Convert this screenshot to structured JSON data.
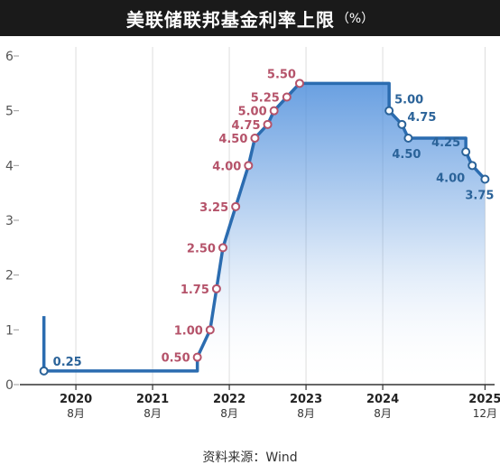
{
  "title": "美联储联邦基金利率上限",
  "title_unit": "（%）",
  "source": "资料来源：Wind",
  "colors": {
    "line": "#2b6cb0",
    "hike": "#b5536a",
    "cut": "#2b6399",
    "fill_top": "#4f8fdc"
  },
  "chart_data": {
    "type": "area",
    "title": "美联储联邦基金利率上限",
    "ylabel": "%",
    "ylim": [
      0,
      6
    ],
    "y_ticks": [
      "0",
      "1",
      "2",
      "3",
      "4",
      "5",
      "6"
    ],
    "x_ticks": [
      {
        "year": "2020",
        "month": "8月"
      },
      {
        "year": "2021",
        "month": "8月"
      },
      {
        "year": "2022",
        "month": "8月"
      },
      {
        "year": "2023",
        "month": "8月"
      },
      {
        "year": "2024",
        "month": "8月"
      },
      {
        "year": "2025",
        "month": "12月"
      }
    ],
    "grid": true,
    "series": [
      {
        "values": [
          {
            "x": "2020-03",
            "y": 1.25
          },
          {
            "x": "2020-03",
            "y": 0.25
          },
          {
            "x": "2022-03",
            "y": 0.25
          },
          {
            "x": "2022-03",
            "y": 0.5
          },
          {
            "x": "2022-05",
            "y": 1.0
          },
          {
            "x": "2022-06",
            "y": 1.75
          },
          {
            "x": "2022-07",
            "y": 2.5
          },
          {
            "x": "2022-09",
            "y": 3.25
          },
          {
            "x": "2022-11",
            "y": 4.0
          },
          {
            "x": "2022-12",
            "y": 4.5
          },
          {
            "x": "2023-02",
            "y": 4.75
          },
          {
            "x": "2023-03",
            "y": 5.0
          },
          {
            "x": "2023-05",
            "y": 5.25
          },
          {
            "x": "2023-07",
            "y": 5.5
          },
          {
            "x": "2024-09",
            "y": 5.5
          },
          {
            "x": "2024-09",
            "y": 5.0
          },
          {
            "x": "2024-11",
            "y": 4.75
          },
          {
            "x": "2024-12",
            "y": 4.5
          },
          {
            "x": "2025-09",
            "y": 4.5
          },
          {
            "x": "2025-09",
            "y": 4.25
          },
          {
            "x": "2025-10",
            "y": 4.0
          },
          {
            "x": "2025-12",
            "y": 3.75
          }
        ]
      }
    ],
    "annotations": [
      {
        "text": "0.25",
        "x": "2020-03",
        "y": 0.25,
        "kind": "cut"
      },
      {
        "text": "0.50",
        "x": "2022-03",
        "y": 0.5,
        "kind": "hike"
      },
      {
        "text": "1.00",
        "x": "2022-05",
        "y": 1.0,
        "kind": "hike"
      },
      {
        "text": "1.75",
        "x": "2022-06",
        "y": 1.75,
        "kind": "hike"
      },
      {
        "text": "2.50",
        "x": "2022-07",
        "y": 2.5,
        "kind": "hike"
      },
      {
        "text": "3.25",
        "x": "2022-09",
        "y": 3.25,
        "kind": "hike"
      },
      {
        "text": "4.00",
        "x": "2022-11",
        "y": 4.0,
        "kind": "hike"
      },
      {
        "text": "4.50",
        "x": "2022-12",
        "y": 4.5,
        "kind": "hike"
      },
      {
        "text": "4.75",
        "x": "2023-02",
        "y": 4.75,
        "kind": "hike"
      },
      {
        "text": "5.00",
        "x": "2023-03",
        "y": 5.0,
        "kind": "hike"
      },
      {
        "text": "5.25",
        "x": "2023-05",
        "y": 5.25,
        "kind": "hike"
      },
      {
        "text": "5.50",
        "x": "2023-07",
        "y": 5.5,
        "kind": "hike"
      },
      {
        "text": "5.00",
        "x": "2024-09",
        "y": 5.0,
        "kind": "cut"
      },
      {
        "text": "4.75",
        "x": "2024-11",
        "y": 4.75,
        "kind": "cut"
      },
      {
        "text": "4.50",
        "x": "2024-12",
        "y": 4.5,
        "kind": "cut"
      },
      {
        "text": "4.25",
        "x": "2025-09",
        "y": 4.25,
        "kind": "cut"
      },
      {
        "text": "4.00",
        "x": "2025-10",
        "y": 4.0,
        "kind": "cut"
      },
      {
        "text": "3.75",
        "x": "2025-12",
        "y": 3.75,
        "kind": "cut"
      }
    ]
  }
}
